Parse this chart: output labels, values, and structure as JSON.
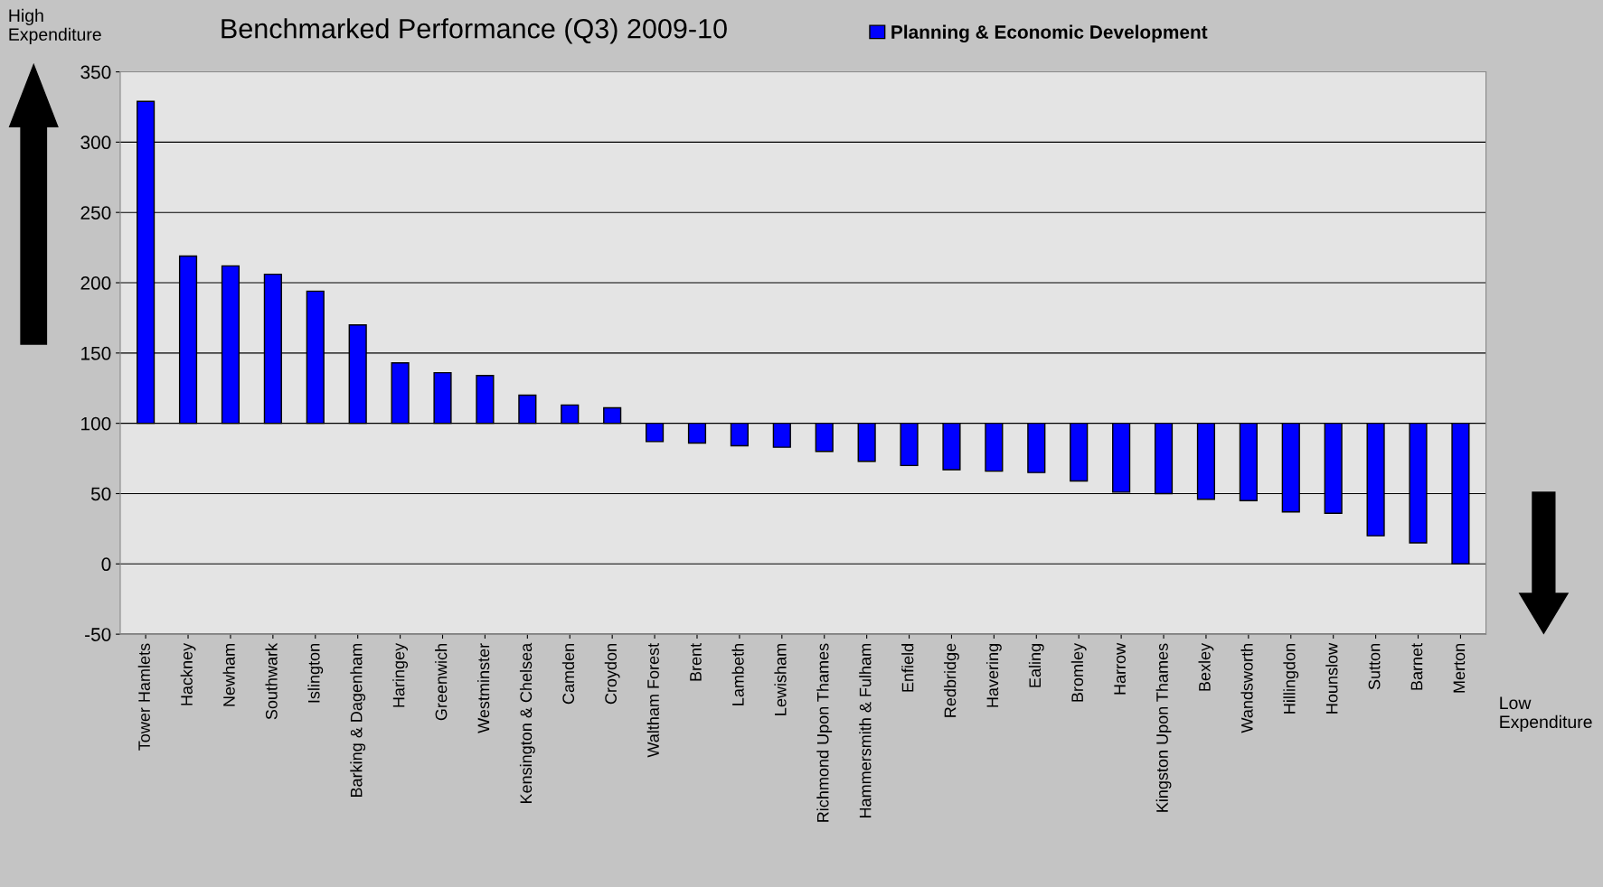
{
  "chart_data": {
    "type": "bar",
    "title": "Benchmarked Performance (Q3) 2009-10",
    "categories": [
      "Tower Hamlets",
      "Hackney",
      "Newham",
      "Southwark",
      "Islington",
      "Barking & Dagenham",
      "Haringey",
      "Greenwich",
      "Westminster",
      "Kensington & Chelsea",
      "Camden",
      "Croydon",
      "Waltham Forest",
      "Brent",
      "Lambeth",
      "Lewisham",
      "Richmond Upon Thames",
      "Hammersmith & Fulham",
      "Enfield",
      "Redbridge",
      "Havering",
      "Ealing",
      "Bromley",
      "Harrow",
      "Kingston Upon Thames",
      "Bexley",
      "Wandsworth",
      "Hillingdon",
      "Hounslow",
      "Sutton",
      "Barnet",
      "Merton"
    ],
    "series": [
      {
        "name": "Planning & Economic Development",
        "color": "#0000ff",
        "base": [
          100,
          100,
          100,
          100,
          100,
          100,
          100,
          100,
          100,
          100,
          100,
          100,
          100,
          100,
          100,
          100,
          100,
          100,
          100,
          100,
          100,
          100,
          100,
          100,
          100,
          100,
          100,
          100,
          100,
          100,
          100,
          100
        ],
        "values": [
          229,
          119,
          112,
          106,
          94,
          70,
          43,
          36,
          34,
          20,
          13,
          11,
          -13,
          -14,
          -16,
          -17,
          -20,
          -27,
          -30,
          -33,
          -34,
          -35,
          -41,
          -49,
          -50,
          -54,
          -55,
          -63,
          -64,
          -80,
          -85,
          -100
        ]
      }
    ],
    "ylim": [
      -50,
      350
    ],
    "yticks": [
      -50,
      0,
      50,
      100,
      150,
      200,
      250,
      300,
      350
    ],
    "grid": "y",
    "legend": "top",
    "annotations": [
      "High Expenditure",
      "Low Expenditure"
    ]
  }
}
